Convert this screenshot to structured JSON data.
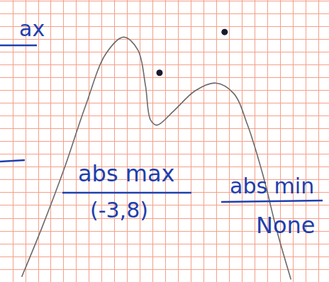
{
  "chart_data": {
    "type": "line",
    "grid": true,
    "tick_labels": false,
    "xlim": [
      0,
      25.78
    ],
    "ylim": [
      0,
      22.11
    ],
    "xticks": [
      0,
      1,
      2,
      3,
      4,
      5,
      6,
      7,
      8,
      9,
      10,
      11,
      12,
      13,
      14,
      15,
      16,
      17,
      18,
      19,
      20,
      21,
      22,
      23,
      24,
      25
    ],
    "yticks": [
      0,
      1,
      2,
      3,
      4,
      5,
      6,
      7,
      8,
      9,
      10,
      11,
      12,
      13,
      14,
      15,
      16,
      17,
      18,
      19,
      20,
      21,
      22
    ],
    "series": [
      {
        "type": "line",
        "color": "#6a6a6a",
        "line_style": "solid",
        "x": [
          1.7,
          3.3,
          5.0,
          6.7,
          8.3,
          9.7,
          10.8,
          11.4,
          11.8,
          12.3,
          13.6,
          15.3,
          16.9,
          18.3,
          19.4,
          20.6,
          21.7,
          22.8
        ],
        "values": [
          0.4,
          4.3,
          8.8,
          13.8,
          17.9,
          19.2,
          18.2,
          15.4,
          12.7,
          12.3,
          13.4,
          15.0,
          15.6,
          14.8,
          12.3,
          8.4,
          4.0,
          0.2
        ]
      },
      {
        "type": "scatter",
        "color": "#1a1a2e",
        "marker": "circle",
        "x": [
          12.5,
          17.6
        ],
        "values": [
          16.4,
          19.6
        ]
      }
    ],
    "annotations": [
      {
        "text": "ax",
        "color": "#1f3fae"
      },
      {
        "text": "abs max",
        "color": "#1f3fae"
      },
      {
        "text": "(-3,8)",
        "color": "#1f3fae"
      },
      {
        "text": "abs min",
        "color": "#1f3fae"
      },
      {
        "text": "None",
        "color": "#1f3fae"
      }
    ]
  }
}
